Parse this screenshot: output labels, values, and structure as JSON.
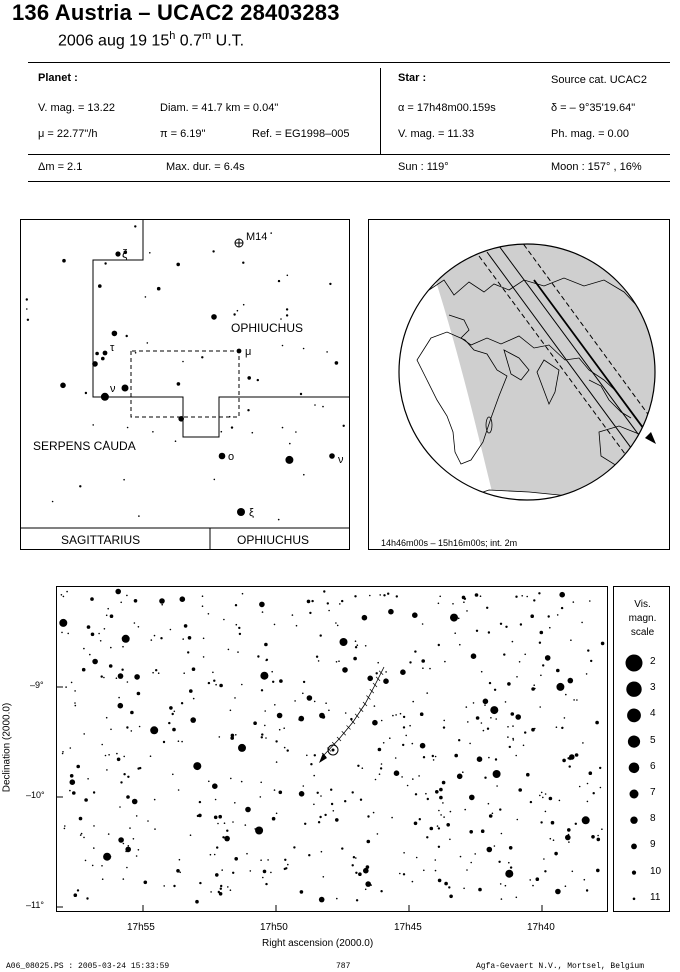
{
  "header": {
    "title": "136 Austria  –  UCAC2 28403283",
    "date_text": "2006 aug 19  15",
    "date_h": "h",
    "date_min": " 0.7",
    "date_m": "m",
    "date_ut": " U.T."
  },
  "planet": {
    "heading": "Planet :",
    "vmag": "V. mag. = 13.22",
    "diam": "Diam. = 41.7 km = 0.04\"",
    "mu": "μ = 22.77\"/h",
    "pi": "π =  6.19\"",
    "ref": "Ref. = EG1998–005"
  },
  "star": {
    "heading": "Star :",
    "source": "Source cat.  UCAC2",
    "alpha": "α = 17h48m00.159s",
    "delta": "δ = – 9°35'19.64\"",
    "vmag": "V. mag. = 11.33",
    "phmag": "Ph. mag. =  0.00"
  },
  "summary": {
    "dm": "Δm = 2.1",
    "maxdur": "Max. dur. = 6.4s",
    "sun": "Sun : 119°",
    "moon": "Moon : 157° , 16%"
  },
  "finder": {
    "m14": "M14",
    "ophiuchus": "OPHIUCHUS",
    "serpens": "SERPENS CAUDA",
    "sagittarius": "SAGITTARIUS",
    "ophiuchus_bottom": "OPHIUCHUS",
    "zeta": "ζ",
    "tau": "τ",
    "nu_left": "ν",
    "mu": "μ",
    "omicron": "o",
    "nu_right": "ν",
    "xi": "ξ"
  },
  "globe": {
    "caption": "14h46m00s – 15h16m00s; int.  2m"
  },
  "starchart": {
    "ylabel": "Declination (2000.0)",
    "xlabel": "Right ascension (2000.0)",
    "yticks": [
      "–9°",
      "–10°",
      "–11°"
    ],
    "xticks": [
      "17h55",
      "17h50",
      "17h45",
      "17h40"
    ]
  },
  "scale": {
    "title_1": "Vis.",
    "title_2": "magn.",
    "title_3": "scale",
    "mags": [
      "2",
      "3",
      "4",
      "5",
      "6",
      "7",
      "8",
      "9",
      "10",
      "11"
    ]
  },
  "footer": {
    "file": "A06_08025.PS : 2005-03-24 15:33:59",
    "page": "787",
    "credit": "Agfa-Gevaert N.V., Mortsel, Belgium"
  }
}
